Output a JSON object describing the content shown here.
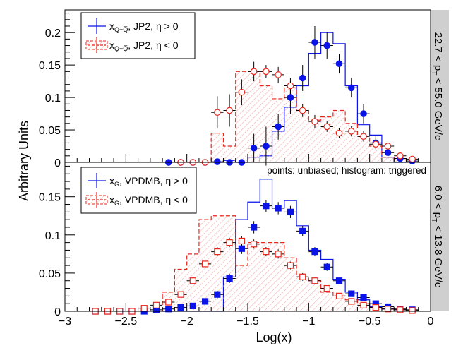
{
  "figure": {
    "ylabel": "Arbitrary Units",
    "xlabel": "Log(x)",
    "annotation": "points: unbiased; histogram: triggered",
    "colors": {
      "blue": "#0a14e8",
      "red": "#e8271c",
      "grey": "#cfcfcf"
    }
  },
  "chart_data": [
    {
      "type": "histogram+points",
      "panel": "top",
      "side_label": {
        "text_a": "22.7 < p",
        "sub": "T",
        "text_b": " < 55.0 GeV/c"
      },
      "xlim": [
        -3,
        0
      ],
      "ylim": [
        0,
        0.235
      ],
      "yticks": [
        0,
        0.05,
        0.1,
        0.15,
        0.2
      ],
      "ytick_labels": [
        "0",
        "0.05",
        "0.1",
        "0.15",
        "0.2"
      ],
      "legend": [
        {
          "main": "x",
          "sub": "Q+Q̅",
          "rest": ", JP2, η > 0",
          "style": "blue-solid"
        },
        {
          "main": "x",
          "sub": "Q+Q̅",
          "rest": ", JP2, η < 0",
          "style": "red-dashed"
        }
      ],
      "series": [
        {
          "style": "blue-solid-hist",
          "edges": [
            -1.8,
            -1.7,
            -1.6,
            -1.5,
            -1.4,
            -1.3,
            -1.2,
            -1.1,
            -1.0,
            -0.9,
            -0.8,
            -0.7,
            -0.6,
            -0.5,
            -0.4,
            -0.3,
            -0.2
          ],
          "values": [
            0.0,
            0.003,
            0.0,
            0.008,
            0.01,
            0.048,
            0.085,
            0.118,
            0.168,
            0.2,
            0.183,
            0.118,
            0.058,
            0.042,
            0.008,
            0.0
          ]
        },
        {
          "style": "red-dashed-hist",
          "edges": [
            -2.1,
            -2.0,
            -1.9,
            -1.8,
            -1.7,
            -1.6,
            -1.5,
            -1.4,
            -1.3,
            -1.2,
            -1.1,
            -1.0,
            -0.9,
            -0.8,
            -0.7,
            -0.6,
            -0.5,
            -0.4,
            -0.3,
            -0.2
          ],
          "values": [
            0.0,
            0.0,
            0.0,
            0.045,
            0.025,
            0.14,
            0.14,
            0.118,
            0.098,
            0.115,
            0.08,
            0.065,
            0.07,
            0.08,
            0.06,
            0.04,
            0.025,
            0.008,
            0.004
          ]
        },
        {
          "style": "blue-filled-circles",
          "x": [
            -2.15,
            -2.05,
            -1.95,
            -1.85,
            -1.75,
            -1.65,
            -1.55,
            -1.45,
            -1.35,
            -1.25,
            -1.15,
            -1.05,
            -0.95,
            -0.85,
            -0.75,
            -0.65,
            -0.55,
            -0.45,
            -0.35,
            -0.25,
            -0.15
          ],
          "y": [
            0.0,
            0.0,
            0.0,
            0.0,
            0.001,
            0.0,
            0.0,
            0.022,
            0.025,
            0.055,
            0.1,
            0.13,
            0.185,
            0.18,
            0.152,
            0.115,
            0.075,
            0.03,
            0.015,
            0.006,
            0.002
          ],
          "err": [
            0.0,
            0.0,
            0.0,
            0.0,
            0.002,
            0.0,
            0.0,
            0.022,
            0.03,
            0.02,
            0.025,
            0.02,
            0.025,
            0.02,
            0.015,
            0.015,
            0.015,
            0.01,
            0.01,
            0.006,
            0.004
          ]
        },
        {
          "style": "red-open-circles",
          "x": [
            -2.05,
            -1.95,
            -1.85,
            -1.75,
            -1.65,
            -1.55,
            -1.45,
            -1.35,
            -1.25,
            -1.15,
            -1.05,
            -0.95,
            -0.85,
            -0.75,
            -0.65,
            -0.55,
            -0.45,
            -0.35,
            -0.25,
            -0.15
          ],
          "y": [
            0.0,
            0.0,
            0.0,
            0.077,
            0.08,
            0.108,
            0.14,
            0.14,
            0.135,
            0.118,
            0.08,
            0.063,
            0.055,
            0.045,
            0.048,
            0.04,
            0.028,
            0.025,
            0.01,
            0.005
          ],
          "err": [
            0.0,
            0.0,
            0.0,
            0.025,
            0.025,
            0.02,
            0.015,
            0.01,
            0.012,
            0.012,
            0.01,
            0.01,
            0.008,
            0.008,
            0.008,
            0.008,
            0.006,
            0.006,
            0.005,
            0.004
          ]
        }
      ]
    },
    {
      "type": "histogram+points",
      "panel": "bottom",
      "side_label": {
        "text_a": "6.0 < p",
        "sub": "T",
        "text_b": " < 13.8 GeV/c"
      },
      "xlim": [
        -3,
        0
      ],
      "ylim": [
        0,
        0.195
      ],
      "xticks": [
        -3,
        -2.5,
        -2,
        -1.5,
        -1,
        -0.5,
        0
      ],
      "xtick_labels": [
        "−3",
        "−2.5",
        "−2",
        "−1.5",
        "−1",
        "−0.5",
        "0"
      ],
      "yticks": [
        0,
        0.05,
        0.1,
        0.15
      ],
      "ytick_labels": [
        "0",
        "0.05",
        "0.1",
        "0.15"
      ],
      "legend": [
        {
          "main": "x",
          "sub": "G",
          "rest": ", VPDMB, η > 0",
          "style": "blue-solid"
        },
        {
          "main": "x",
          "sub": "G",
          "rest": ", VPDMB, η < 0",
          "style": "red-dashed"
        }
      ],
      "series": [
        {
          "style": "blue-solid-hist",
          "edges": [
            -2.2,
            -2.1,
            -2.0,
            -1.9,
            -1.8,
            -1.7,
            -1.6,
            -1.5,
            -1.4,
            -1.3,
            -1.2,
            -1.1,
            -1.0,
            -0.9,
            -0.8,
            -0.7,
            -0.6,
            -0.5,
            -0.4,
            -0.3,
            -0.2
          ],
          "values": [
            0.0,
            0.0,
            0.0,
            0.0,
            0.0,
            0.045,
            0.12,
            0.143,
            0.173,
            0.135,
            0.145,
            0.112,
            0.08,
            0.068,
            0.042,
            0.025,
            0.015,
            0.006,
            0.003,
            0.002
          ]
        },
        {
          "style": "red-dashed-hist",
          "edges": [
            -2.2,
            -2.1,
            -2.0,
            -1.9,
            -1.8,
            -1.7,
            -1.6,
            -1.5,
            -1.4,
            -1.3,
            -1.2,
            -1.1,
            -1.0,
            -0.9,
            -0.8,
            -0.7,
            -0.6,
            -0.5,
            -0.4,
            -0.3,
            -0.2
          ],
          "values": [
            0.025,
            0.055,
            0.075,
            0.12,
            0.125,
            0.125,
            0.06,
            0.09,
            0.09,
            0.09,
            0.07,
            0.045,
            0.04,
            0.025,
            0.02,
            0.015,
            0.01,
            0.005,
            0.003,
            0.002
          ]
        },
        {
          "style": "blue-filled-squares",
          "x": [
            -2.75,
            -2.65,
            -2.55,
            -2.45,
            -2.35,
            -2.25,
            -2.15,
            -2.05,
            -1.95,
            -1.85,
            -1.75,
            -1.65,
            -1.55,
            -1.45,
            -1.35,
            -1.25,
            -1.15,
            -1.05,
            -0.95,
            -0.85,
            -0.75,
            -0.65,
            -0.55,
            -0.45,
            -0.35,
            -0.25,
            -0.15
          ],
          "y": [
            0.0,
            0.0,
            0.0,
            0.0,
            0.0,
            0.002,
            0.003,
            0.005,
            0.007,
            0.013,
            0.022,
            0.043,
            0.082,
            0.11,
            0.138,
            0.135,
            0.13,
            0.105,
            0.078,
            0.058,
            0.04,
            0.023,
            0.018,
            0.01,
            0.006,
            0.003,
            0.002
          ],
          "err": [
            0.001,
            0.001,
            0.001,
            0.001,
            0.001,
            0.002,
            0.002,
            0.003,
            0.003,
            0.004,
            0.005,
            0.006,
            0.007,
            0.008,
            0.008,
            0.008,
            0.008,
            0.007,
            0.006,
            0.005,
            0.004,
            0.003,
            0.003,
            0.002,
            0.002,
            0.001,
            0.001
          ]
        },
        {
          "style": "red-open-squares",
          "x": [
            -2.75,
            -2.65,
            -2.55,
            -2.45,
            -2.35,
            -2.25,
            -2.15,
            -2.05,
            -1.95,
            -1.85,
            -1.75,
            -1.65,
            -1.55,
            -1.45,
            -1.35,
            -1.25,
            -1.15,
            -1.05,
            -0.95,
            -0.85,
            -0.75,
            -0.65,
            -0.55,
            -0.45,
            -0.35,
            -0.25,
            -0.15
          ],
          "y": [
            0.0,
            0.0,
            0.0,
            0.0,
            0.004,
            0.008,
            0.012,
            0.022,
            0.04,
            0.062,
            0.078,
            0.09,
            0.092,
            0.088,
            0.078,
            0.075,
            0.06,
            0.045,
            0.04,
            0.03,
            0.02,
            0.013,
            0.008,
            0.005,
            0.003,
            0.002,
            0.001
          ],
          "err": [
            0.001,
            0.001,
            0.001,
            0.001,
            0.002,
            0.002,
            0.003,
            0.004,
            0.005,
            0.006,
            0.006,
            0.006,
            0.006,
            0.006,
            0.006,
            0.006,
            0.005,
            0.005,
            0.004,
            0.004,
            0.003,
            0.003,
            0.002,
            0.002,
            0.002,
            0.001,
            0.001
          ]
        }
      ]
    }
  ]
}
